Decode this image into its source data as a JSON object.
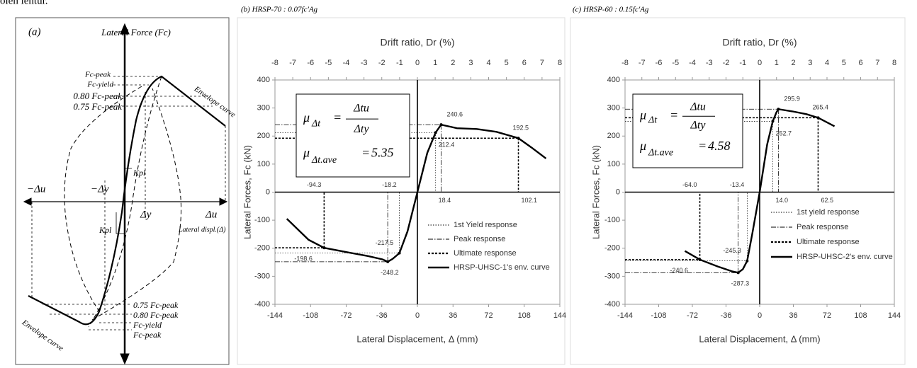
{
  "caption_fragment": "oleh lentur.",
  "panel_a": {
    "label": "(a)",
    "vertical_axis": "Lateral Force (Fc)",
    "horizontal_axis": "Lateral displ.(Δ)",
    "envelope_labels": [
      "Envelope curve",
      "Envelope curve"
    ],
    "force_levels_positive": [
      "Fc-peak",
      "Fc-yield",
      "0.80 Fc-peak",
      "0.75 Fc-peak"
    ],
    "force_levels_negative": [
      "0.75 Fc-peak",
      "0.80 Fc-peak",
      "Fc-yield",
      "Fc-peak"
    ],
    "displacements": [
      "−Δu",
      "−Δy",
      "Δy",
      "Δu"
    ],
    "stiffness": [
      "Kpl",
      "Kpl"
    ]
  },
  "chart_data": [
    {
      "type": "line",
      "title": "(b) HRSP-70 : 0.07fc'Ag",
      "x2_label": "Drift ratio, Dr (%)",
      "y_label": "Lateral Forces, Fc (kN)",
      "x_label": "Lateral Displacement, Δ (mm)",
      "xlim": [
        -144,
        144
      ],
      "xticks": [
        -144,
        -108,
        -72,
        -36,
        0,
        36,
        72,
        108,
        144
      ],
      "x2lim": [
        -8,
        8
      ],
      "x2ticks": [
        -8,
        -7,
        -6,
        -5,
        -4,
        -3,
        -2,
        -1,
        0,
        1,
        2,
        3,
        4,
        5,
        6,
        7,
        8
      ],
      "ylim": [
        -400,
        400
      ],
      "yticks": [
        -400,
        -300,
        -200,
        -100,
        0,
        100,
        200,
        300,
        400
      ],
      "legend": "lower right",
      "ductility": {
        "symbol": "μ",
        "subscript": "Δt",
        "equals": "=",
        "numerator": "Δtu",
        "denominator": "Δty",
        "ave_subscript": "Δt.ave",
        "ave_value": 5.35
      },
      "series": [
        {
          "name": "1st Yield response",
          "kind": "points",
          "style": "dotted",
          "color": "#000000",
          "x_labels_shown": true,
          "x": [
            18.4,
            -18.2
          ],
          "values": [
            212.4,
            -217.5
          ]
        },
        {
          "name": "Peak response",
          "kind": "points",
          "style": "dashdot",
          "color": "#000000",
          "x_labels_shown": false,
          "x": [
            24,
            -30
          ],
          "values": [
            240.6,
            -248.2
          ]
        },
        {
          "name": "Ultimate response",
          "kind": "points",
          "style": "dashed",
          "color": "#000000",
          "x_labels_shown": true,
          "x": [
            102.1,
            -94.3
          ],
          "values": [
            192.5,
            -198.6
          ]
        },
        {
          "name": "HRSP-UHSC-1's env. curve",
          "kind": "line",
          "style": "solid",
          "color": "#000000",
          "x": [
            -132,
            -110,
            -94.3,
            -70,
            -50,
            -35,
            -30,
            -25,
            -18.2,
            -10,
            0,
            10,
            18.4,
            24,
            40,
            60,
            80,
            102.1,
            115,
            130
          ],
          "values": [
            -95,
            -170,
            -198.6,
            -215,
            -228,
            -240,
            -248.2,
            -238,
            -217.5,
            -140,
            0,
            140,
            212.4,
            240.6,
            228,
            225,
            215,
            192.5,
            160,
            120
          ]
        }
      ]
    },
    {
      "type": "line",
      "title": "(c) HRSP-60 : 0.15fc'Ag",
      "x2_label": "Drift ratio, Dr (%)",
      "y_label": "Lateral Forces, Fc (kN)",
      "x_label": "Lateral Displacement, Δ (mm)",
      "xlim": [
        -144,
        144
      ],
      "xticks": [
        -144,
        -108,
        -72,
        -36,
        0,
        36,
        72,
        108,
        144
      ],
      "x2lim": [
        -8,
        8
      ],
      "x2ticks": [
        -8,
        -7,
        -6,
        -5,
        -4,
        -3,
        -2,
        -1,
        0,
        1,
        2,
        3,
        4,
        5,
        6,
        7,
        8
      ],
      "ylim": [
        -400,
        400
      ],
      "yticks": [
        -400,
        -300,
        -200,
        -100,
        0,
        100,
        200,
        300,
        400
      ],
      "legend": "lower right",
      "ductility": {
        "symbol": "μ",
        "subscript": "Δt",
        "equals": "=",
        "numerator": "Δtu",
        "denominator": "Δty",
        "ave_subscript": "Δt.ave",
        "ave_value": 4.58
      },
      "series": [
        {
          "name": "1st yield response",
          "kind": "points",
          "style": "dotted",
          "color": "#000000",
          "x_labels_shown": true,
          "x": [
            14,
            -13.4
          ],
          "x_labels": [
            "14.0",
            "-13.4"
          ],
          "values": [
            252.7,
            -245.3
          ]
        },
        {
          "name": "Peak response",
          "kind": "points",
          "style": "dashdot",
          "color": "#000000",
          "x_labels_shown": false,
          "x": [
            20,
            -23
          ],
          "values": [
            295.9,
            -287.3
          ]
        },
        {
          "name": "Ultimate response",
          "kind": "points",
          "style": "dashed",
          "color": "#000000",
          "x_labels_shown": true,
          "x": [
            62.5,
            -64
          ],
          "x_labels": [
            "62.5",
            "-64.0"
          ],
          "values": [
            265.4,
            -240.6
          ]
        },
        {
          "name": "HRSP-UHSC-2's env. curve",
          "kind": "line",
          "style": "solid",
          "color": "#000000",
          "x": [
            -80,
            -64,
            -45,
            -30,
            -23,
            -18,
            -13.4,
            -8,
            0,
            8,
            14,
            18,
            20,
            35,
            50,
            62.5,
            80
          ],
          "values": [
            -210,
            -240.6,
            -265,
            -282,
            -287.3,
            -275,
            -245.3,
            -150,
            0,
            170,
            252.7,
            285,
            295.9,
            288,
            278,
            265.4,
            235
          ]
        }
      ]
    }
  ]
}
